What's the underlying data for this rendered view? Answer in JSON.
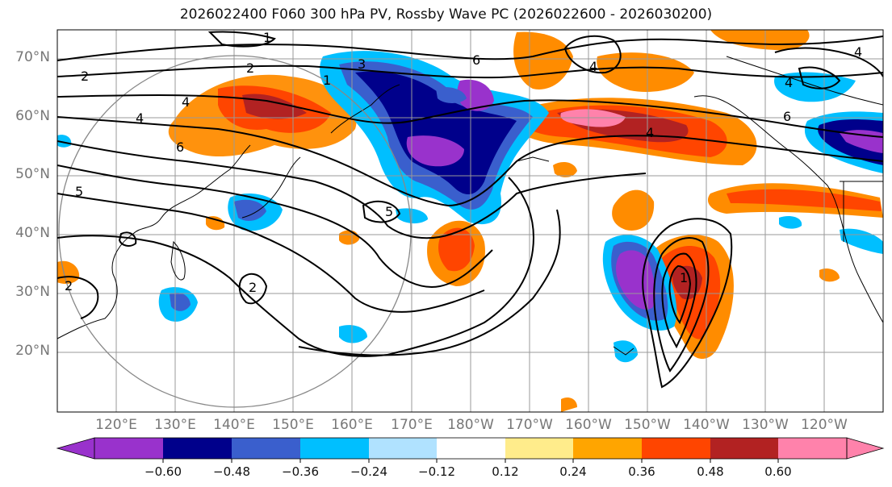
{
  "title": "2026022400 F060 300 hPa PV, Rossby Wave PC (2026022600 - 2026030200)",
  "lat_labels": [
    "70°N",
    "60°N",
    "50°N",
    "40°N",
    "30°N",
    "20°N"
  ],
  "lon_labels": [
    "120°E",
    "130°E",
    "140°E",
    "150°E",
    "160°E",
    "170°E",
    "180°W",
    "170°W",
    "160°W",
    "150°W",
    "140°W",
    "130°W",
    "120°W"
  ],
  "contour_labels": [
    "1",
    "2",
    "4",
    "5",
    "6",
    "3"
  ],
  "colorbar": {
    "ticks": [
      "−0.60",
      "−0.48",
      "−0.36",
      "−0.24",
      "−0.12",
      "0.12",
      "0.24",
      "0.36",
      "0.48",
      "0.60"
    ],
    "colors": [
      "#9932cc",
      "#00008b",
      "#3a5fcd",
      "#00bfff",
      "#b0e2ff",
      "#ffffff",
      "#ffec8b",
      "#ffa500",
      "#ff4500",
      "#b22222",
      "#ff82ab"
    ]
  }
}
